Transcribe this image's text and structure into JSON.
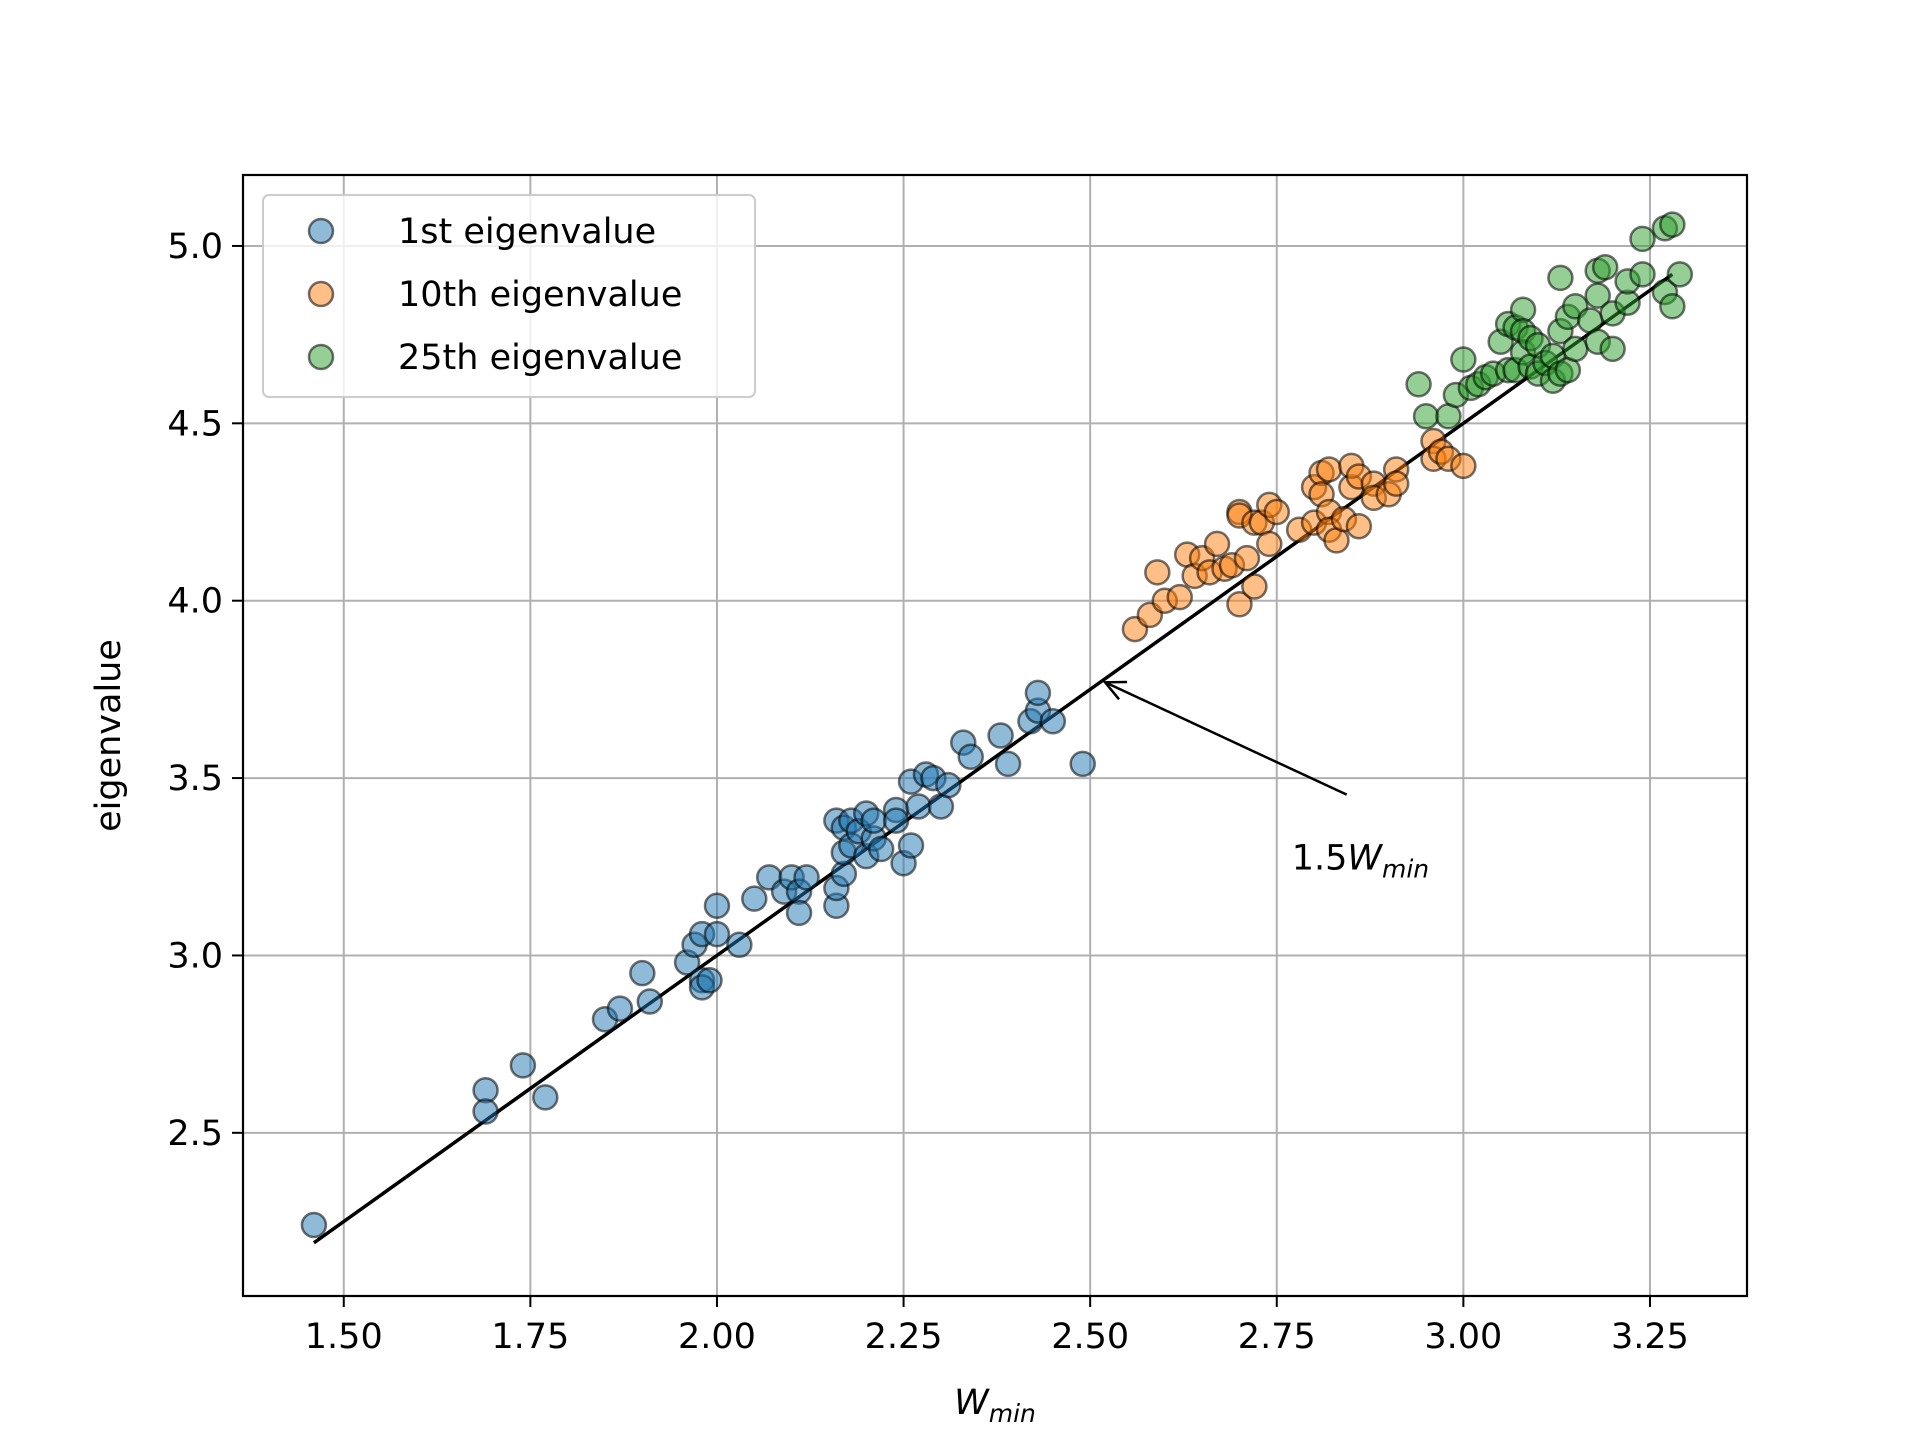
{
  "chart_data": {
    "type": "scatter",
    "xlabel": "W",
    "xlabel_sub": "min",
    "ylabel": "eigenvalue",
    "xlim": [
      1.365,
      3.38
    ],
    "ylim": [
      2.04,
      5.2
    ],
    "grid": true,
    "legend_position": "top-left",
    "xticks": [
      "1.50",
      "1.75",
      "2.00",
      "2.25",
      "2.50",
      "2.75",
      "3.00",
      "3.25"
    ],
    "yticks": [
      "2.5",
      "3.0",
      "3.5",
      "4.0",
      "4.5",
      "5.0"
    ],
    "series": [
      {
        "name": "1st eigenvalue",
        "color": "#1f77b4",
        "points": [
          [
            1.46,
            2.24
          ],
          [
            1.69,
            2.62
          ],
          [
            1.69,
            2.56
          ],
          [
            1.74,
            2.69
          ],
          [
            1.77,
            2.6
          ],
          [
            1.85,
            2.82
          ],
          [
            1.87,
            2.85
          ],
          [
            1.9,
            2.95
          ],
          [
            1.91,
            2.87
          ],
          [
            1.96,
            2.98
          ],
          [
            1.97,
            3.03
          ],
          [
            1.98,
            3.06
          ],
          [
            1.98,
            2.93
          ],
          [
            1.98,
            2.91
          ],
          [
            1.99,
            2.93
          ],
          [
            2.0,
            3.06
          ],
          [
            2.0,
            3.14
          ],
          [
            2.03,
            3.03
          ],
          [
            2.05,
            3.16
          ],
          [
            2.07,
            3.22
          ],
          [
            2.09,
            3.18
          ],
          [
            2.1,
            3.22
          ],
          [
            2.11,
            3.18
          ],
          [
            2.11,
            3.12
          ],
          [
            2.12,
            3.22
          ],
          [
            2.16,
            3.14
          ],
          [
            2.16,
            3.38
          ],
          [
            2.16,
            3.19
          ],
          [
            2.17,
            3.23
          ],
          [
            2.17,
            3.29
          ],
          [
            2.17,
            3.36
          ],
          [
            2.18,
            3.31
          ],
          [
            2.18,
            3.38
          ],
          [
            2.19,
            3.35
          ],
          [
            2.2,
            3.28
          ],
          [
            2.2,
            3.4
          ],
          [
            2.21,
            3.33
          ],
          [
            2.22,
            3.3
          ],
          [
            2.21,
            3.38
          ],
          [
            2.24,
            3.41
          ],
          [
            2.24,
            3.38
          ],
          [
            2.25,
            3.26
          ],
          [
            2.26,
            3.31
          ],
          [
            2.26,
            3.49
          ],
          [
            2.27,
            3.42
          ],
          [
            2.28,
            3.51
          ],
          [
            2.29,
            3.5
          ],
          [
            2.3,
            3.42
          ],
          [
            2.31,
            3.48
          ],
          [
            2.33,
            3.6
          ],
          [
            2.34,
            3.56
          ],
          [
            2.38,
            3.62
          ],
          [
            2.39,
            3.54
          ],
          [
            2.42,
            3.66
          ],
          [
            2.43,
            3.69
          ],
          [
            2.43,
            3.74
          ],
          [
            2.45,
            3.66
          ],
          [
            2.49,
            3.54
          ]
        ]
      },
      {
        "name": "10th eigenvalue",
        "color": "#ff7f0e",
        "points": [
          [
            2.56,
            3.92
          ],
          [
            2.58,
            3.96
          ],
          [
            2.59,
            4.08
          ],
          [
            2.6,
            4.0
          ],
          [
            2.62,
            4.01
          ],
          [
            2.63,
            4.13
          ],
          [
            2.64,
            4.07
          ],
          [
            2.65,
            4.12
          ],
          [
            2.66,
            4.08
          ],
          [
            2.67,
            4.16
          ],
          [
            2.68,
            4.09
          ],
          [
            2.69,
            4.1
          ],
          [
            2.7,
            4.25
          ],
          [
            2.7,
            4.24
          ],
          [
            2.7,
            3.99
          ],
          [
            2.71,
            4.12
          ],
          [
            2.72,
            4.22
          ],
          [
            2.72,
            4.04
          ],
          [
            2.73,
            4.22
          ],
          [
            2.74,
            4.16
          ],
          [
            2.74,
            4.27
          ],
          [
            2.75,
            4.25
          ],
          [
            2.78,
            4.2
          ],
          [
            2.8,
            4.22
          ],
          [
            2.8,
            4.32
          ],
          [
            2.81,
            4.36
          ],
          [
            2.81,
            4.3
          ],
          [
            2.82,
            4.37
          ],
          [
            2.82,
            4.25
          ],
          [
            2.82,
            4.2
          ],
          [
            2.83,
            4.17
          ],
          [
            2.84,
            4.23
          ],
          [
            2.85,
            4.32
          ],
          [
            2.85,
            4.38
          ],
          [
            2.86,
            4.21
          ],
          [
            2.86,
            4.35
          ],
          [
            2.88,
            4.33
          ],
          [
            2.88,
            4.29
          ],
          [
            2.9,
            4.3
          ],
          [
            2.91,
            4.37
          ],
          [
            2.91,
            4.33
          ],
          [
            2.96,
            4.45
          ],
          [
            2.96,
            4.4
          ],
          [
            2.97,
            4.42
          ],
          [
            2.98,
            4.4
          ],
          [
            3.0,
            4.38
          ]
        ]
      },
      {
        "name": "25th eigenvalue",
        "color": "#2ca02c",
        "points": [
          [
            2.94,
            4.61
          ],
          [
            2.95,
            4.52
          ],
          [
            2.98,
            4.52
          ],
          [
            2.99,
            4.58
          ],
          [
            3.0,
            4.68
          ],
          [
            3.01,
            4.6
          ],
          [
            3.02,
            4.61
          ],
          [
            3.03,
            4.63
          ],
          [
            3.04,
            4.64
          ],
          [
            3.05,
            4.73
          ],
          [
            3.06,
            4.65
          ],
          [
            3.06,
            4.78
          ],
          [
            3.07,
            4.65
          ],
          [
            3.07,
            4.77
          ],
          [
            3.08,
            4.82
          ],
          [
            3.08,
            4.76
          ],
          [
            3.08,
            4.7
          ],
          [
            3.09,
            4.74
          ],
          [
            3.09,
            4.66
          ],
          [
            3.1,
            4.64
          ],
          [
            3.1,
            4.72
          ],
          [
            3.11,
            4.67
          ],
          [
            3.12,
            4.69
          ],
          [
            3.12,
            4.62
          ],
          [
            3.13,
            4.64
          ],
          [
            3.13,
            4.76
          ],
          [
            3.13,
            4.91
          ],
          [
            3.14,
            4.8
          ],
          [
            3.14,
            4.65
          ],
          [
            3.15,
            4.83
          ],
          [
            3.15,
            4.71
          ],
          [
            3.17,
            4.79
          ],
          [
            3.18,
            4.86
          ],
          [
            3.18,
            4.73
          ],
          [
            3.18,
            4.93
          ],
          [
            3.19,
            4.94
          ],
          [
            3.2,
            4.81
          ],
          [
            3.2,
            4.71
          ],
          [
            3.22,
            4.84
          ],
          [
            3.22,
            4.9
          ],
          [
            3.24,
            4.92
          ],
          [
            3.24,
            5.02
          ],
          [
            3.27,
            4.87
          ],
          [
            3.27,
            5.05
          ],
          [
            3.28,
            5.06
          ],
          [
            3.28,
            4.83
          ],
          [
            3.29,
            4.92
          ]
        ]
      }
    ],
    "fit_line": {
      "slope": 1.5,
      "x": [
        1.46,
        3.28
      ]
    },
    "annotation": {
      "text": "1.5",
      "text_italic": "W",
      "text_sub": "min",
      "xy": [
        2.52,
        3.77
      ],
      "xytext": [
        2.77,
        3.27
      ]
    }
  }
}
